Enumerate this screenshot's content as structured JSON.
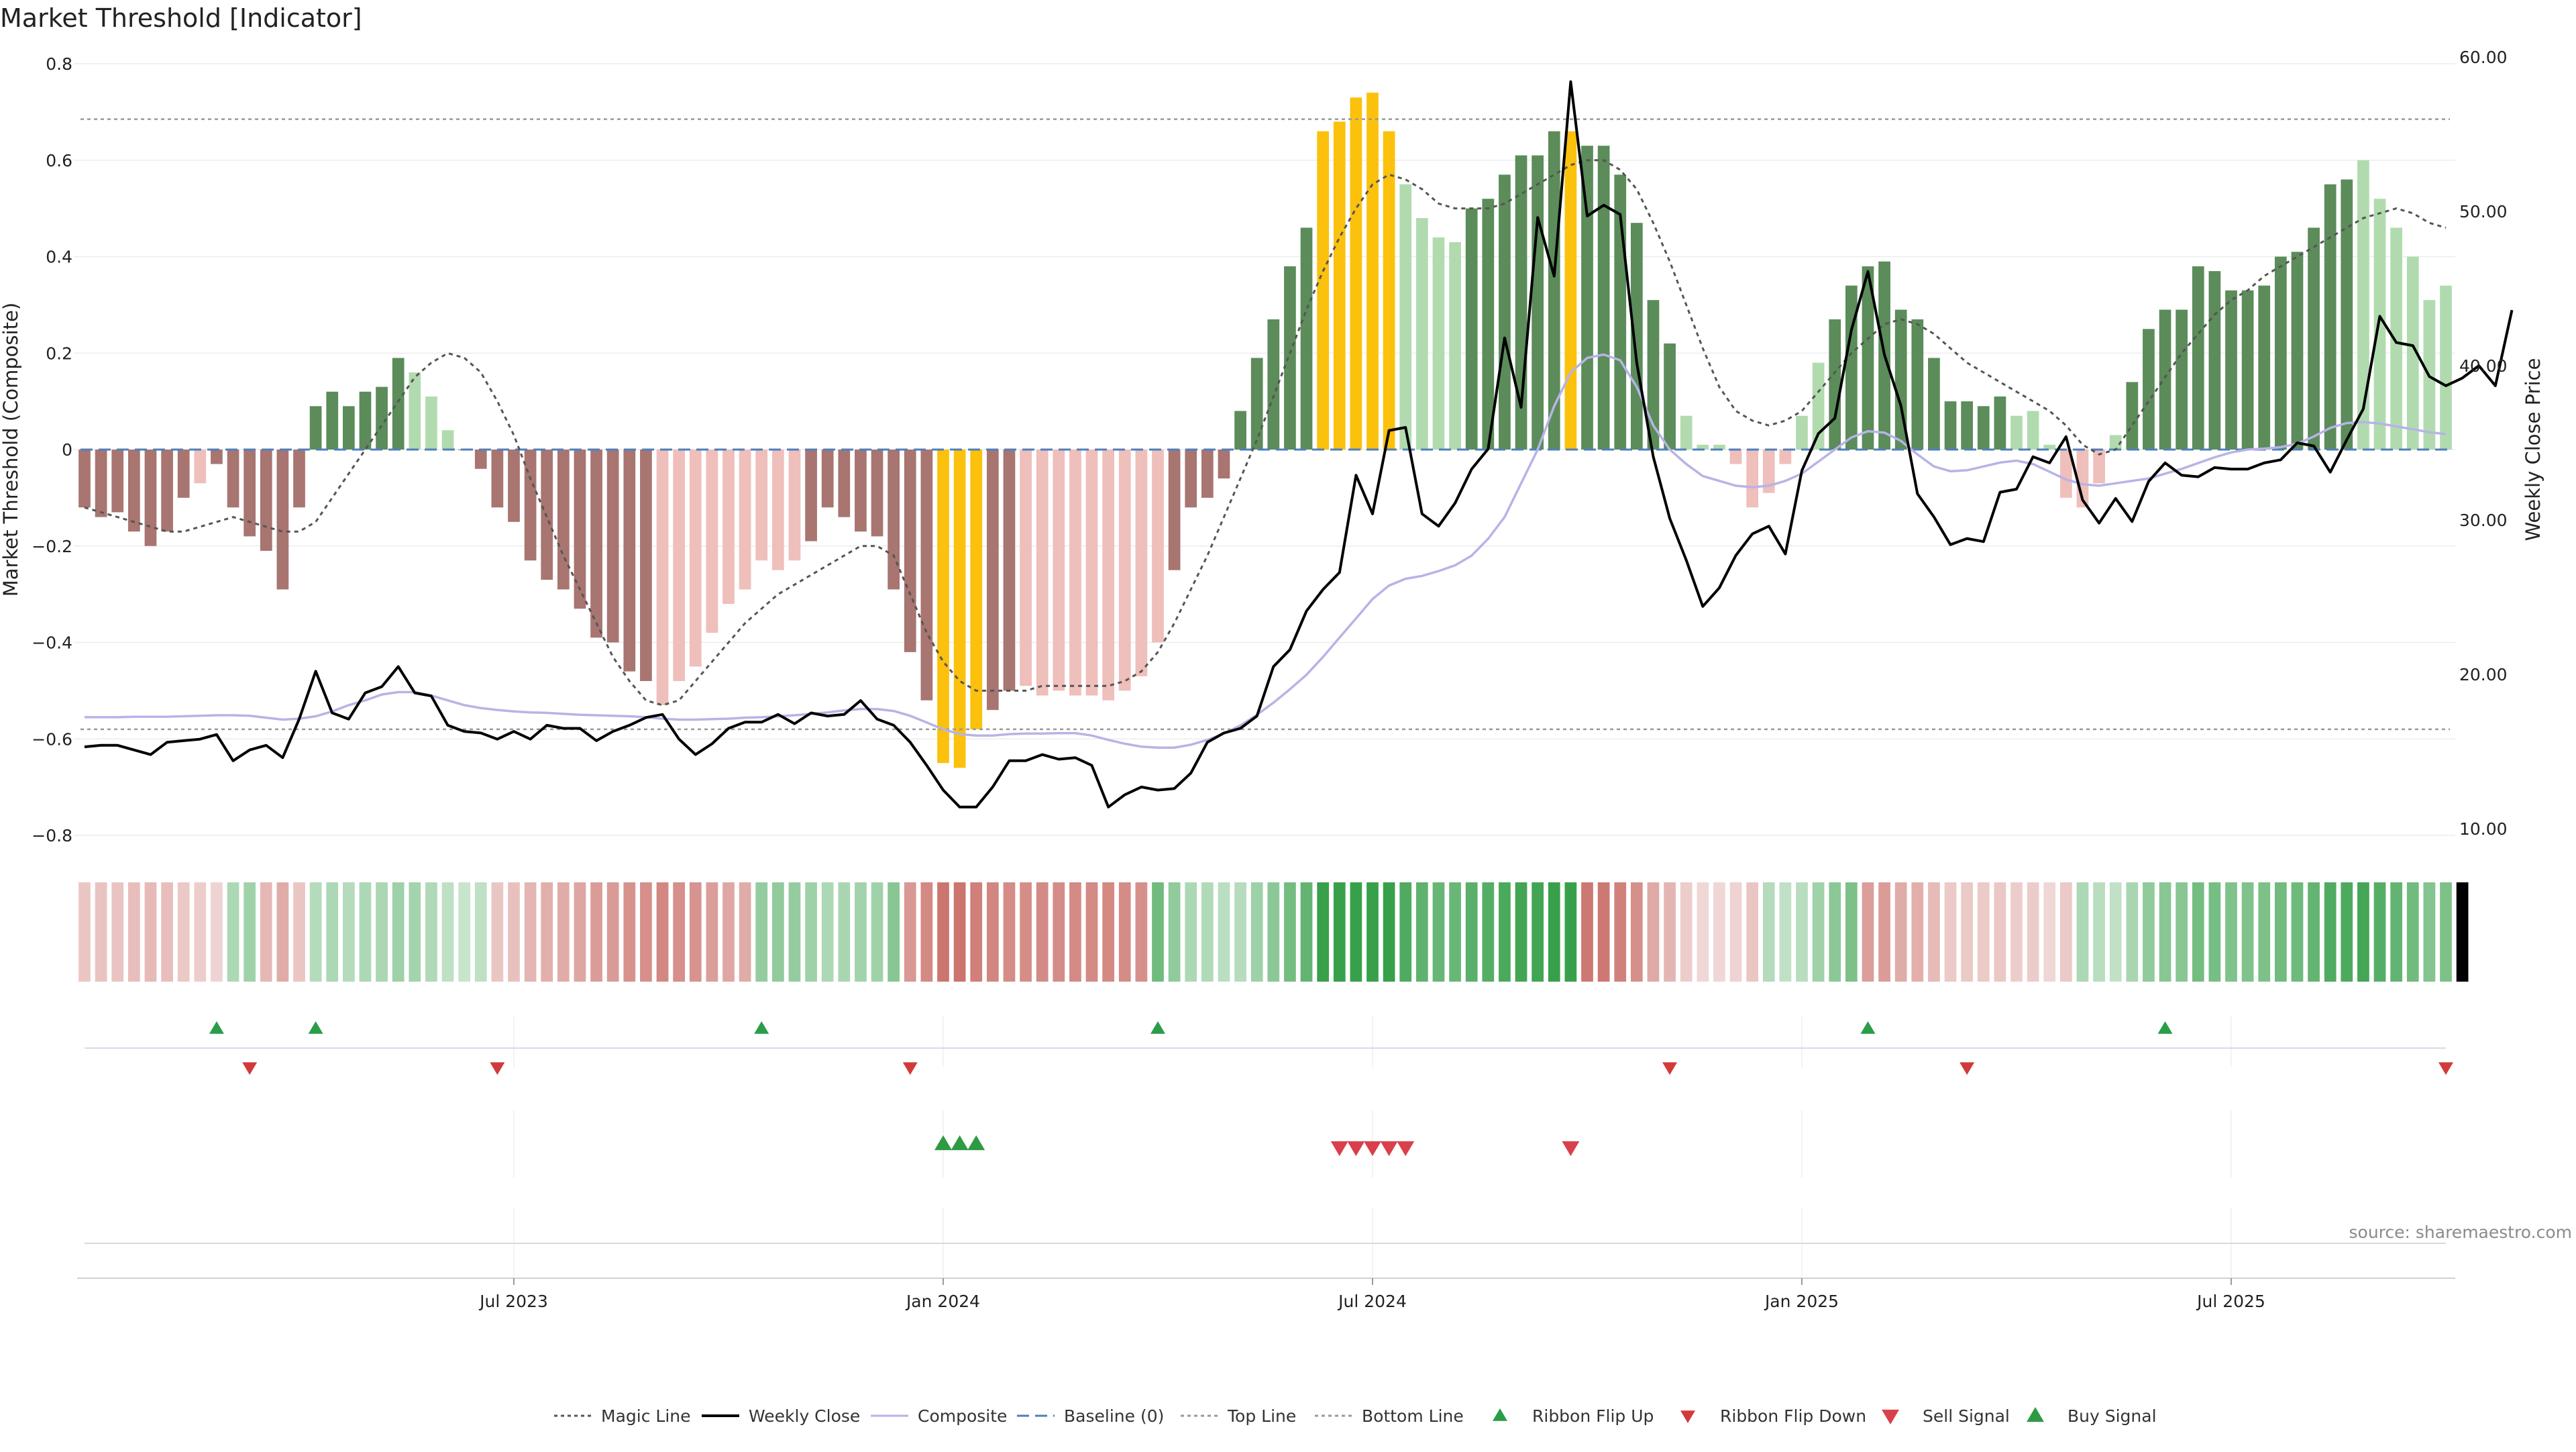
{
  "title": "Market Threshold [Indicator]",
  "source": "source: sharemaestro.com",
  "colors": {
    "pos_dark": "#5b8c5a",
    "pos_light": "#b1dbaf",
    "neg_dark": "#a87571",
    "neg_light": "#efbfbb",
    "extreme": "#fbc10c",
    "magic": "#555555",
    "close": "#000000",
    "composite": "#b8b3e6",
    "baseline": "#4f7fba",
    "thresh": "#999999",
    "ribbon_up": "#2a9d48",
    "ribbon_down": "#d23a3a",
    "buy": "#2f9a44",
    "sell": "#d9404c"
  },
  "chart_data": {
    "type": "bar",
    "title": "Market Threshold [Indicator]",
    "ylabel": "Market Threshold (Composite)",
    "y2label": "Weekly Close Price",
    "ylim": [
      -0.8,
      0.8
    ],
    "y2lim": [
      10,
      60
    ],
    "yticks": [
      "0.8",
      "0.6",
      "0.4",
      "0.2",
      "0",
      "−0.2",
      "−0.4",
      "−0.6",
      "−0.8"
    ],
    "y2ticks": [
      "60.00",
      "50.00",
      "40.00",
      "30.00",
      "20.00",
      "10.00"
    ],
    "xtick_labels": [
      "Jul 2023",
      "Jan 2024",
      "Jul 2024",
      "Jan 2025",
      "Jul 2025"
    ],
    "xtick_weeks": [
      26,
      52,
      78,
      104,
      130
    ],
    "weeks": 144,
    "top_line": 0.685,
    "bottom_line": -0.58,
    "bars": [
      -0.12,
      -0.14,
      -0.13,
      -0.17,
      -0.2,
      -0.17,
      -0.1,
      -0.07,
      -0.03,
      -0.12,
      -0.18,
      -0.21,
      -0.29,
      -0.12,
      0.09,
      0.12,
      0.09,
      0.12,
      0.13,
      0.19,
      0.16,
      0.11,
      0.04,
      0.0,
      -0.04,
      -0.12,
      -0.15,
      -0.23,
      -0.27,
      -0.29,
      -0.33,
      -0.39,
      -0.4,
      -0.46,
      -0.48,
      -0.53,
      -0.48,
      -0.45,
      -0.38,
      -0.32,
      -0.29,
      -0.23,
      -0.25,
      -0.23,
      -0.19,
      -0.12,
      -0.14,
      -0.17,
      -0.18,
      -0.29,
      -0.42,
      -0.52,
      -0.65,
      -0.66,
      -0.58,
      -0.54,
      -0.5,
      -0.49,
      -0.51,
      -0.5,
      -0.51,
      -0.51,
      -0.52,
      -0.5,
      -0.47,
      -0.4,
      -0.25,
      -0.12,
      -0.1,
      -0.06,
      0.08,
      0.19,
      0.27,
      0.38,
      0.46,
      0.66,
      0.68,
      0.73,
      0.74,
      0.66,
      0.55,
      0.48,
      0.44,
      0.43,
      0.5,
      0.52,
      0.57,
      0.61,
      0.61,
      0.66,
      0.66,
      0.63,
      0.63,
      0.57,
      0.47,
      0.31,
      0.22,
      0.07,
      0.01,
      0.01,
      -0.03,
      -0.12,
      -0.09,
      -0.03,
      0.07,
      0.18,
      0.27,
      0.34,
      0.38,
      0.39,
      0.29,
      0.27,
      0.19,
      0.1,
      0.1,
      0.09,
      0.11,
      0.07,
      0.08,
      0.01,
      -0.1,
      -0.12,
      -0.07,
      0.03,
      0.14,
      0.25,
      0.29,
      0.29,
      0.38,
      0.37,
      0.33,
      0.33,
      0.34,
      0.4,
      0.41,
      0.46,
      0.55,
      0.56,
      0.6,
      0.52,
      0.46,
      0.4,
      0.31,
      0.34
    ],
    "bar_shade": "dddddddlddddddddddddlllddddddddddddllllllllldddddddddddddllllllllldddddddddddddllllldddddddddddddllllllllldddddddddddlllllllddddddddddddddlllll",
    "extreme_weeks": [
      52,
      53,
      54,
      75,
      76,
      77,
      78,
      79,
      90
    ],
    "magic_line": [
      -0.12,
      -0.13,
      -0.14,
      -0.15,
      -0.16,
      -0.17,
      -0.17,
      -0.16,
      -0.15,
      -0.14,
      -0.15,
      -0.16,
      -0.17,
      -0.17,
      -0.15,
      -0.1,
      -0.05,
      0.0,
      0.05,
      0.1,
      0.15,
      0.18,
      0.2,
      0.19,
      0.16,
      0.1,
      0.03,
      -0.06,
      -0.14,
      -0.22,
      -0.29,
      -0.36,
      -0.43,
      -0.48,
      -0.52,
      -0.53,
      -0.52,
      -0.48,
      -0.44,
      -0.4,
      -0.36,
      -0.33,
      -0.3,
      -0.28,
      -0.26,
      -0.24,
      -0.22,
      -0.2,
      -0.2,
      -0.22,
      -0.3,
      -0.38,
      -0.44,
      -0.48,
      -0.5,
      -0.5,
      -0.5,
      -0.5,
      -0.49,
      -0.49,
      -0.49,
      -0.49,
      -0.49,
      -0.48,
      -0.46,
      -0.42,
      -0.36,
      -0.29,
      -0.22,
      -0.14,
      -0.06,
      0.02,
      0.11,
      0.2,
      0.29,
      0.37,
      0.44,
      0.5,
      0.55,
      0.57,
      0.56,
      0.54,
      0.51,
      0.5,
      0.5,
      0.5,
      0.51,
      0.53,
      0.55,
      0.57,
      0.59,
      0.6,
      0.6,
      0.58,
      0.54,
      0.47,
      0.39,
      0.3,
      0.21,
      0.13,
      0.08,
      0.06,
      0.05,
      0.06,
      0.08,
      0.12,
      0.16,
      0.2,
      0.23,
      0.26,
      0.27,
      0.26,
      0.24,
      0.21,
      0.18,
      0.16,
      0.14,
      0.12,
      0.1,
      0.08,
      0.05,
      0.01,
      -0.01,
      0.0,
      0.05,
      0.1,
      0.15,
      0.2,
      0.24,
      0.28,
      0.31,
      0.33,
      0.36,
      0.38,
      0.4,
      0.42,
      0.44,
      0.46,
      0.48,
      0.49,
      0.5,
      0.49,
      0.47,
      0.46
    ],
    "composite_line": [
      -0.555,
      -0.555,
      -0.555,
      -0.554,
      -0.554,
      -0.554,
      -0.553,
      -0.552,
      -0.551,
      -0.551,
      -0.552,
      -0.556,
      -0.56,
      -0.558,
      -0.553,
      -0.543,
      -0.53,
      -0.52,
      -0.508,
      -0.503,
      -0.503,
      -0.51,
      -0.52,
      -0.53,
      -0.536,
      -0.54,
      -0.543,
      -0.545,
      -0.546,
      -0.548,
      -0.55,
      -0.551,
      -0.552,
      -0.553,
      -0.555,
      -0.558,
      -0.56,
      -0.56,
      -0.559,
      -0.558,
      -0.556,
      -0.555,
      -0.553,
      -0.551,
      -0.548,
      -0.545,
      -0.541,
      -0.538,
      -0.538,
      -0.542,
      -0.552,
      -0.566,
      -0.58,
      -0.59,
      -0.593,
      -0.593,
      -0.59,
      -0.589,
      -0.589,
      -0.588,
      -0.588,
      -0.593,
      -0.602,
      -0.61,
      -0.616,
      -0.618,
      -0.618,
      -0.612,
      -0.602,
      -0.589,
      -0.572,
      -0.55,
      -0.525,
      -0.497,
      -0.467,
      -0.43,
      -0.39,
      -0.35,
      -0.31,
      -0.282,
      -0.268,
      -0.262,
      -0.252,
      -0.24,
      -0.22,
      -0.185,
      -0.14,
      -0.07,
      0.0,
      0.09,
      0.16,
      0.19,
      0.197,
      0.185,
      0.13,
      0.05,
      0.0,
      -0.03,
      -0.055,
      -0.065,
      -0.075,
      -0.078,
      -0.075,
      -0.065,
      -0.05,
      -0.025,
      0.0,
      0.025,
      0.038,
      0.035,
      0.018,
      -0.01,
      -0.035,
      -0.045,
      -0.043,
      -0.035,
      -0.027,
      -0.023,
      -0.03,
      -0.046,
      -0.062,
      -0.072,
      -0.075,
      -0.07,
      -0.065,
      -0.06,
      -0.05,
      -0.04,
      -0.028,
      -0.016,
      -0.006,
      0.0,
      0.002,
      0.005,
      0.012,
      0.027,
      0.045,
      0.055,
      0.057,
      0.054,
      0.048,
      0.042,
      0.036,
      0.032
    ],
    "weekly_close": [
      15.3,
      15.4,
      15.4,
      15.1,
      14.8,
      15.6,
      15.7,
      15.8,
      16.1,
      14.4,
      15.1,
      15.4,
      14.6,
      17.1,
      20.2,
      17.5,
      17.1,
      18.8,
      19.2,
      20.5,
      18.8,
      18.6,
      16.7,
      16.3,
      16.2,
      15.8,
      16.3,
      15.8,
      16.7,
      16.5,
      16.5,
      15.7,
      16.3,
      16.7,
      17.2,
      17.4,
      15.8,
      14.8,
      15.5,
      16.5,
      16.9,
      16.9,
      17.4,
      16.8,
      17.5,
      17.3,
      17.4,
      18.3,
      17.1,
      16.7,
      15.6,
      14.1,
      12.5,
      11.4,
      11.4,
      12.7,
      14.4,
      14.4,
      14.8,
      14.5,
      14.6,
      14.1,
      11.4,
      12.2,
      12.7,
      12.5,
      12.6,
      13.6,
      15.6,
      16.2,
      16.5,
      17.3,
      20.5,
      21.6,
      24.1,
      25.5,
      26.6,
      32.9,
      30.4,
      35.8,
      36.0,
      30.4,
      29.6,
      31.1,
      33.3,
      34.6,
      41.8,
      37.3,
      49.6,
      45.8,
      58.4,
      49.7,
      50.4,
      49.8,
      40.2,
      34.1,
      30.1,
      27.4,
      24.4,
      25.6,
      27.7,
      29.1,
      29.6,
      27.8,
      33.2,
      35.6,
      36.6,
      42.3,
      46.1,
      40.7,
      37.4,
      31.7,
      30.2,
      28.4,
      28.8,
      28.6,
      31.8,
      32.0,
      34.1,
      33.7,
      35.4,
      31.3,
      29.8,
      31.4,
      29.9,
      32.5,
      33.7,
      32.9,
      32.8,
      33.4,
      33.3,
      33.3,
      33.7,
      33.9,
      35.0,
      34.8,
      33.1,
      35.2,
      37.2,
      43.2,
      41.5,
      41.3,
      39.3,
      38.7,
      39.2,
      40.0,
      38.7,
      43.6
    ],
    "ribbon": [
      "FC4343",
      "FC4343",
      "FC4343",
      "FC4343",
      "FC4343",
      "FC4343",
      "FC4343",
      "FC4343",
      "FD4343",
      "5A4",
      "5A4",
      "FD4343",
      "FD4343",
      "FD4343",
      "5A4",
      "5A4",
      "5A4",
      "5A4",
      "5A4",
      "5A4",
      "5A4",
      "5A4",
      "5A4",
      "5A4",
      "5A4",
      "F59C97",
      "F59C97",
      "F59C97",
      "F59C97",
      "F59C97",
      "F59C97",
      "F59C97",
      "F59C97",
      "F59C97",
      "F59C97",
      "F59C97",
      "F59C97",
      "F59C97",
      "F59C97",
      "F59C97",
      "F59C97",
      "5A4",
      "5A4",
      "5A4",
      "5A4",
      "5A4",
      "5A4",
      "5A4",
      "5A4",
      "5A4",
      "F59C97",
      "F59C97",
      "F59C97",
      "F59C97",
      "F59C97",
      "F59C97",
      "F59C97",
      "F59C97",
      "F59C97",
      "F59C97",
      "F59C97",
      "F59C97",
      "F59C97",
      "F59C97",
      "F59C97",
      "5A4",
      "5A4",
      "5A4",
      "5A4",
      "5A4",
      "5A4",
      "5A4",
      "5A4",
      "5A4",
      "5A4",
      "5A4",
      "5A4",
      "5A4",
      "5A4",
      "5A4",
      "5A4",
      "5A4",
      "5A4",
      "5A4",
      "5A4",
      "5A4",
      "5A4",
      "5A4",
      "5A4",
      "5A4",
      "5A4",
      "F59C97",
      "F59C97",
      "F59C97",
      "F59C97",
      "F59C97",
      "F59C97",
      "F59C97",
      "F59C97",
      "F59C97",
      "F59C97",
      "F59C97",
      "5A4",
      "5A4",
      "5A4",
      "5A4",
      "5A4",
      "5A4",
      "F59C97",
      "F59C97",
      "F59C97",
      "F59C97",
      "F59C97",
      "F59C97",
      "F59C97",
      "F59C97",
      "F59C97",
      "F59C97",
      "F59C97",
      "F59C97",
      "F59C97",
      "5A4",
      "5A4",
      "5A4",
      "5A4",
      "5A4",
      "5A4",
      "5A4",
      "5A4",
      "5A4",
      "5A4",
      "5A4",
      "5A4",
      "5A4",
      "5A4",
      "5A4",
      "5A4",
      "5A4",
      "5A4",
      "5A4",
      "5A4",
      "5A4",
      "5A4",
      "5A4",
      "F59C97"
    ],
    "ribbon_flip_up_weeks": [
      8,
      14,
      41,
      65,
      108,
      126
    ],
    "ribbon_flip_down_weeks": [
      10,
      25,
      50,
      96,
      114,
      143
    ],
    "buy_signal_weeks": [
      52,
      53,
      54
    ],
    "sell_signal_weeks": [
      76,
      77,
      78,
      79,
      80,
      90
    ]
  },
  "legend": [
    {
      "label": "Magic Line",
      "style": "dotted",
      "color": "#555555"
    },
    {
      "label": "Weekly Close",
      "style": "solid",
      "color": "#000000"
    },
    {
      "label": "Composite",
      "style": "solid-light",
      "color": "#b8b3e6"
    },
    {
      "label": "Baseline (0)",
      "style": "dashed",
      "color": "#4f7fba"
    },
    {
      "label": "Top Line",
      "style": "dotted-light",
      "color": "#999999"
    },
    {
      "label": "Bottom Line",
      "style": "dotted-light",
      "color": "#999999"
    },
    {
      "label": "Ribbon Flip Up",
      "style": "tri-up",
      "color": "#2a9d48"
    },
    {
      "label": "Ribbon Flip Down",
      "style": "tri-down",
      "color": "#d23a3a"
    },
    {
      "label": "Sell Signal",
      "style": "tri-down-big",
      "color": "#d9404c"
    },
    {
      "label": "Buy Signal",
      "style": "tri-up-big",
      "color": "#2f9a44"
    }
  ]
}
